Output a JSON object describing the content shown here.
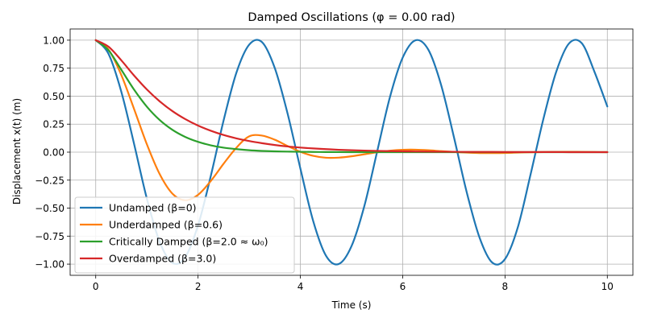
{
  "chart_data": {
    "type": "line",
    "title": "Damped Oscillations (φ = 0.00 rad)",
    "xlabel": "Time (s)",
    "ylabel": "Displacement x(t) (m)",
    "xlim": [
      -0.5,
      10.5
    ],
    "ylim": [
      -1.1,
      1.1
    ],
    "grid": true,
    "legend_position": "lower-left",
    "x_ticks": [
      {
        "value": 0,
        "label": "0"
      },
      {
        "value": 2,
        "label": "2"
      },
      {
        "value": 4,
        "label": "4"
      },
      {
        "value": 6,
        "label": "6"
      },
      {
        "value": 8,
        "label": "8"
      },
      {
        "value": 10,
        "label": "10"
      }
    ],
    "y_ticks": [
      {
        "value": 1.0,
        "label": "1.00"
      },
      {
        "value": 0.75,
        "label": "0.75"
      },
      {
        "value": 0.5,
        "label": "0.50"
      },
      {
        "value": 0.25,
        "label": "0.25"
      },
      {
        "value": 0.0,
        "label": "0.00"
      },
      {
        "value": -0.25,
        "label": "−0.25"
      },
      {
        "value": -0.5,
        "label": "−0.50"
      },
      {
        "value": -0.75,
        "label": "−0.75"
      },
      {
        "value": -1.0,
        "label": "−1.00"
      }
    ],
    "x": [
      0,
      0.25,
      0.5,
      0.75,
      1,
      1.25,
      1.5,
      1.75,
      2,
      2.25,
      2.5,
      2.75,
      3,
      3.25,
      3.5,
      3.75,
      4,
      4.25,
      4.5,
      4.75,
      5,
      5.25,
      5.5,
      5.75,
      6,
      6.25,
      6.5,
      6.75,
      7,
      7.25,
      7.5,
      7.75,
      8,
      8.25,
      8.5,
      8.75,
      9,
      9.25,
      9.5,
      9.75,
      10
    ],
    "series": [
      {
        "name": "Undamped (β=0)",
        "color": "#1f77b4",
        "values": [
          1.0,
          0.878,
          0.54,
          0.073,
          -0.416,
          -0.801,
          -0.99,
          -0.937,
          -0.654,
          -0.211,
          0.284,
          0.71,
          0.96,
          0.983,
          0.751,
          0.345,
          -0.146,
          -0.614,
          -0.924,
          -0.999,
          -0.839,
          -0.482,
          0.004,
          0.49,
          0.844,
          0.999,
          0.916,
          0.602,
          0.137,
          -0.355,
          -0.76,
          -0.986,
          -0.955,
          -0.672,
          -0.199,
          0.296,
          0.716,
          0.97,
          0.973,
          0.716,
          0.408
        ]
      },
      {
        "name": "Underdamped (β=0.6)",
        "color": "#ff7f0e",
        "values": [
          1.0,
          0.916,
          0.689,
          0.385,
          0.07,
          -0.196,
          -0.371,
          -0.43,
          -0.381,
          -0.257,
          -0.103,
          0.04,
          0.141,
          0.148,
          0.111,
          0.055,
          0.003,
          -0.033,
          -0.05,
          -0.049,
          -0.037,
          -0.019,
          -0.001,
          0.013,
          0.021,
          0.022,
          0.017,
          0.009,
          0.002,
          -0.004,
          -0.008,
          -0.008,
          -0.007,
          -0.004,
          -0.001,
          0.001,
          0.002,
          0.003,
          0.002,
          0.001,
          0.0
        ]
      },
      {
        "name": "Critically Damped (β=2.0 ≈ ω₀)",
        "color": "#2ca02c",
        "values": [
          1.0,
          0.91,
          0.736,
          0.558,
          0.406,
          0.287,
          0.199,
          0.136,
          0.092,
          0.061,
          0.04,
          0.027,
          0.017,
          0.011,
          0.007,
          0.005,
          0.003,
          0.002,
          0.001,
          0.001,
          0.0,
          0.0,
          0.0,
          0.0,
          0.0,
          0.0,
          0.0,
          0.0,
          0.0,
          0.0,
          0.0,
          0.0,
          0.0,
          0.0,
          0.0,
          0.0,
          0.0,
          0.0,
          0.0,
          0.0,
          0.0
        ]
      },
      {
        "name": "Overdamped (β=3.0)",
        "color": "#d62728",
        "values": [
          1.0,
          0.942,
          0.82,
          0.684,
          0.56,
          0.454,
          0.366,
          0.295,
          0.237,
          0.191,
          0.153,
          0.123,
          0.099,
          0.08,
          0.064,
          0.051,
          0.041,
          0.033,
          0.027,
          0.021,
          0.017,
          0.014,
          0.011,
          0.009,
          0.007,
          0.006,
          0.005,
          0.004,
          0.003,
          0.002,
          0.002,
          0.002,
          0.001,
          0.001,
          0.001,
          0.001,
          0.001,
          0.0,
          0.0,
          0.0,
          0.0
        ]
      }
    ]
  }
}
